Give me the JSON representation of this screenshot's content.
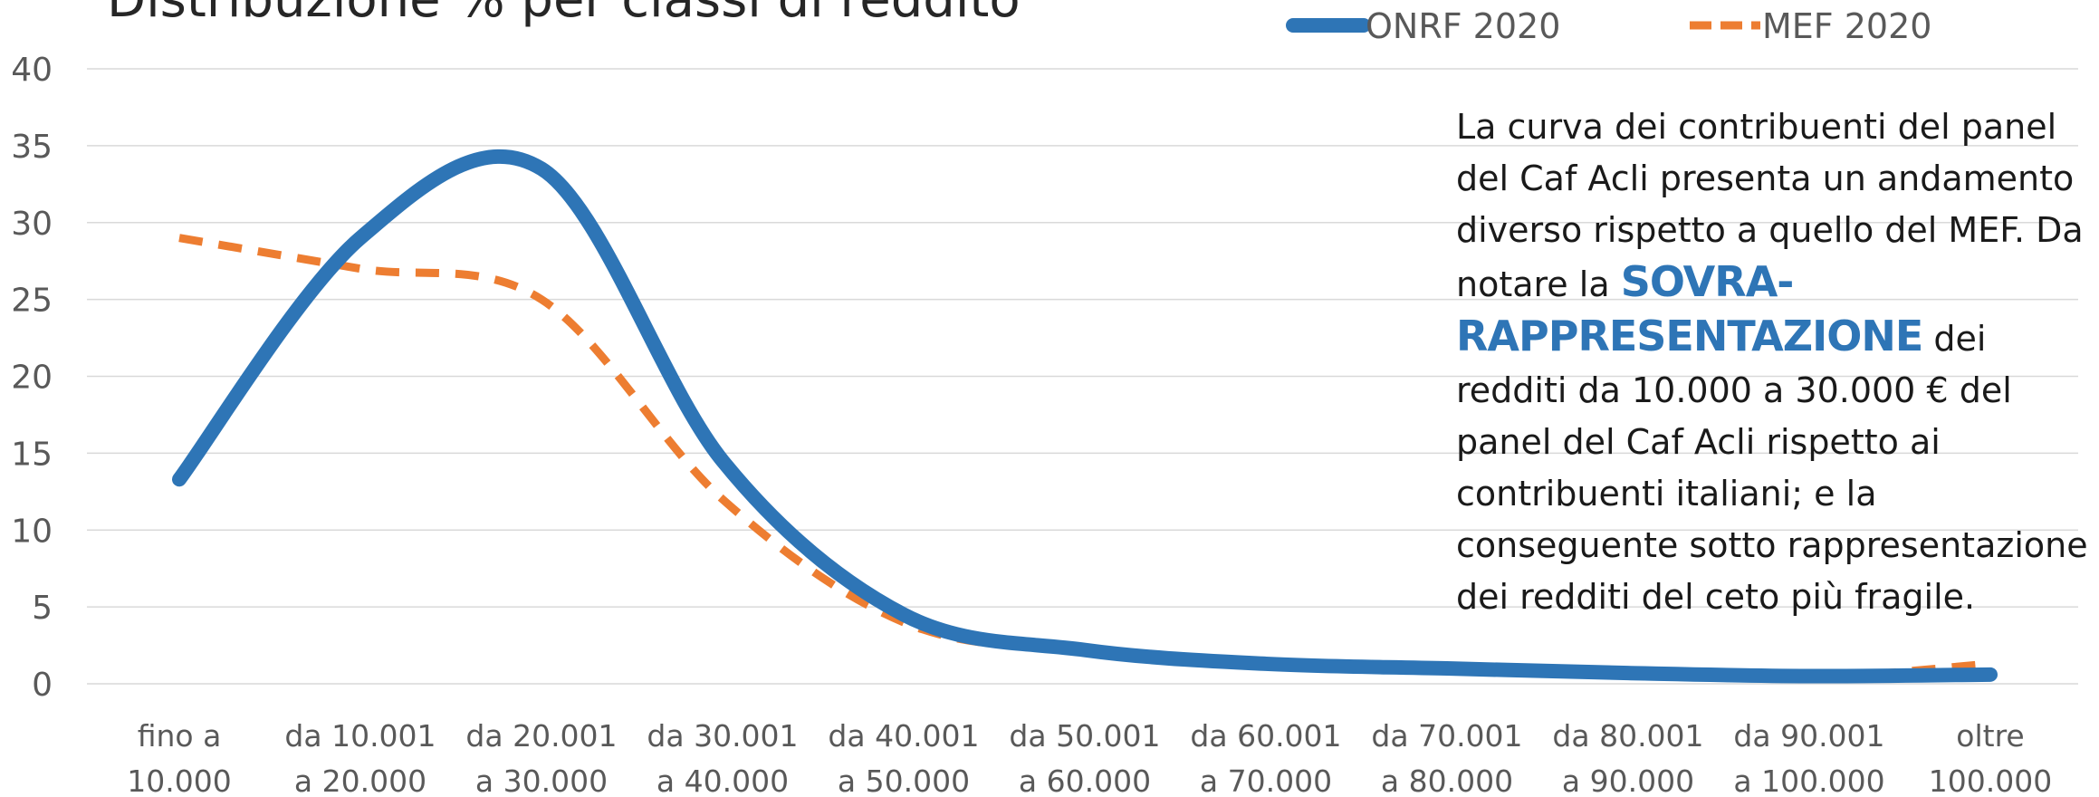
{
  "chart_data": {
    "type": "line",
    "title": "Distribuzione % per classi di reddito",
    "categories": [
      [
        "fino a",
        "10.000"
      ],
      [
        "da 10.001",
        "a 20.000"
      ],
      [
        "da 20.001",
        "a 30.000"
      ],
      [
        "da 30.001",
        "a 40.000"
      ],
      [
        "da 40.001",
        "a 50.000"
      ],
      [
        "da 50.001",
        "a 60.000"
      ],
      [
        "da 60.001",
        "a 70.000"
      ],
      [
        "da 70.001",
        "a 80.000"
      ],
      [
        "da 80.001",
        "a 90.000"
      ],
      [
        "da 90.001",
        "a 100.000"
      ],
      [
        "oltre",
        "100.000"
      ]
    ],
    "ylim": [
      0,
      40
    ],
    "yticks": [
      0,
      5,
      10,
      15,
      20,
      25,
      30,
      35,
      40
    ],
    "grid": true,
    "legend_position": "top-right",
    "series": [
      {
        "name": "ONRF 2020",
        "color": "#2e75b6",
        "style": "solid",
        "values": [
          13.3,
          29.0,
          33.5,
          14.5,
          4.5,
          2.2,
          1.3,
          1.0,
          0.7,
          0.5,
          0.6
        ]
      },
      {
        "name": "MEF 2020",
        "color": "#ed7d31",
        "style": "dashed",
        "values": [
          29.0,
          27.0,
          25.0,
          12.0,
          4.0,
          2.1,
          1.4,
          1.0,
          0.7,
          0.4,
          1.3
        ]
      }
    ]
  },
  "note": {
    "before": "La curva dei contribuenti del panel del Caf Acli presenta un andamento diverso rispetto a quello del MEF. Da notare la ",
    "highlight": "SOVRA-RAPPRESENTAZIONE",
    "after": " dei redditi da 10.000 a 30.000 € del panel del Caf Acli rispetto ai contribuenti italiani; e la conseguente sotto rappresentazione dei redditi del ceto più fragile."
  }
}
